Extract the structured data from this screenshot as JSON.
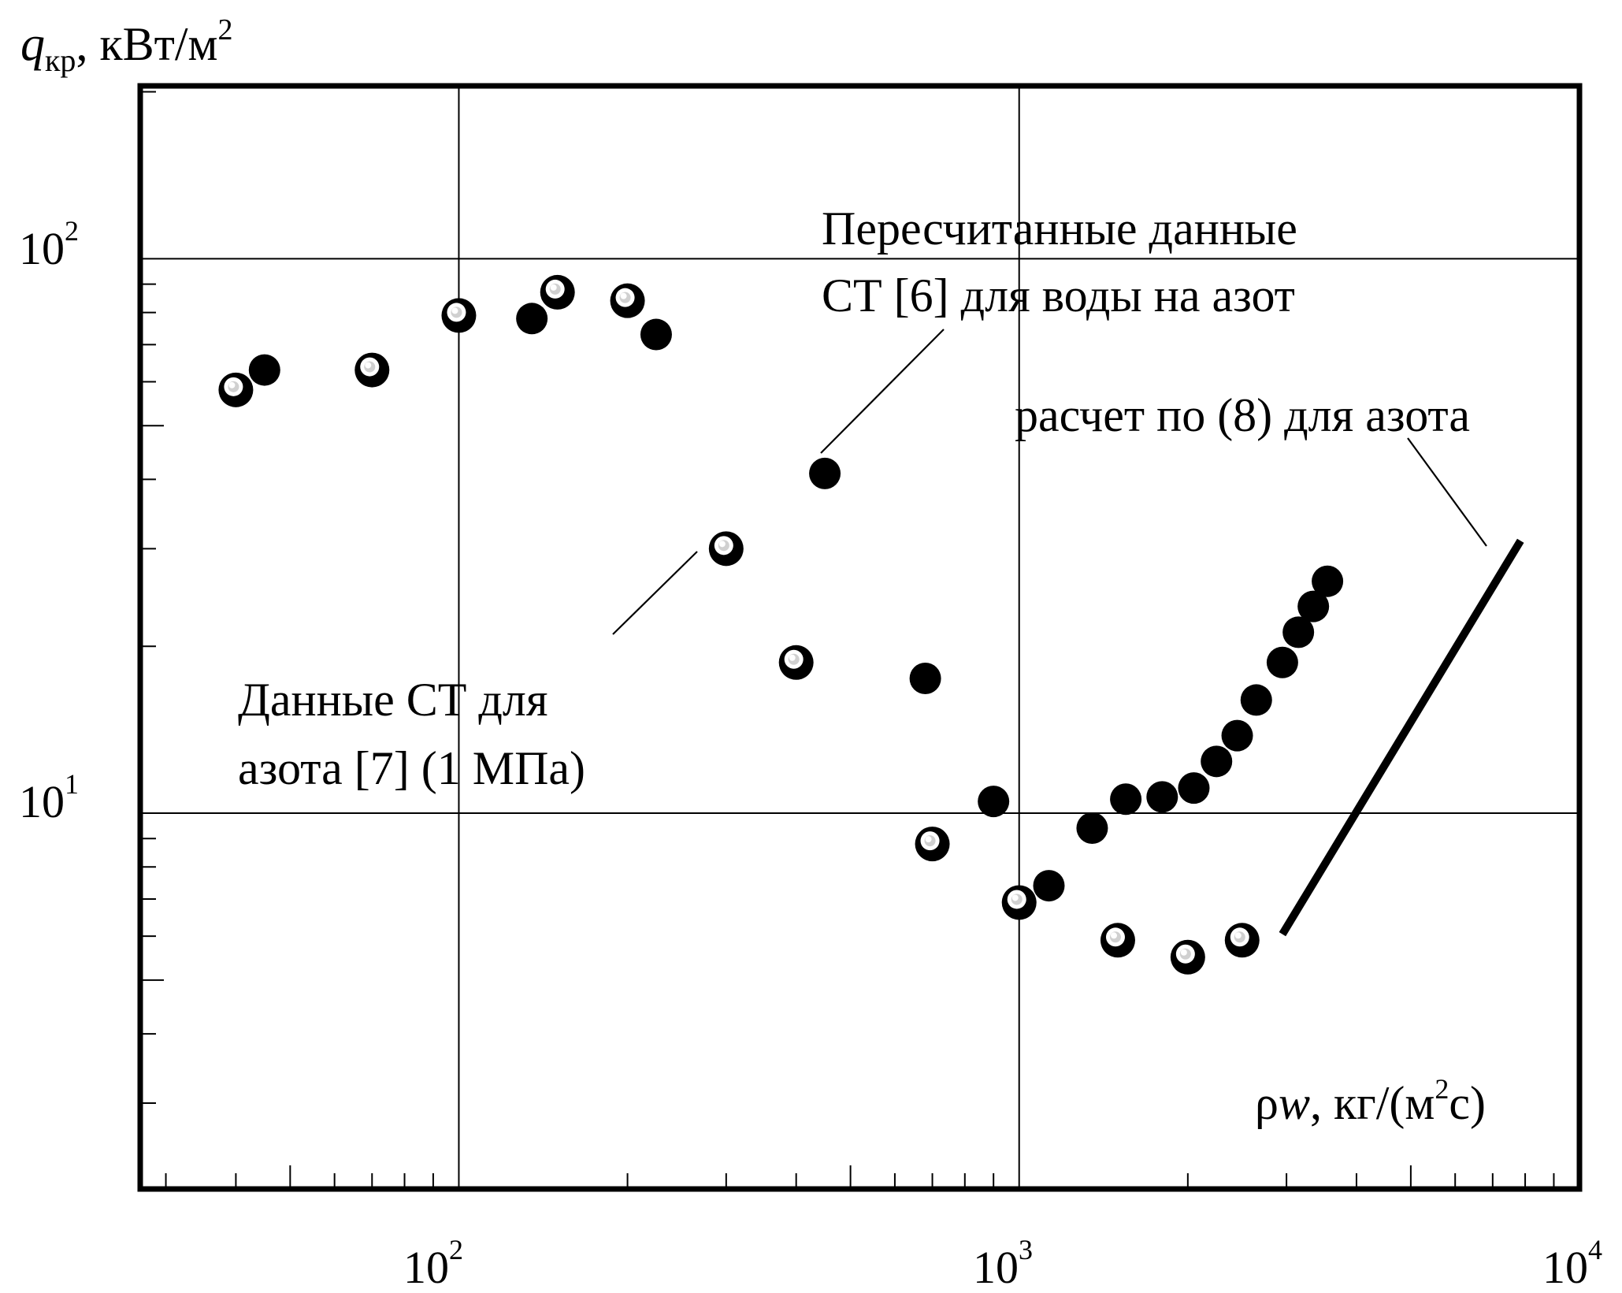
{
  "chart_data": {
    "type": "scatter",
    "ylabel": {
      "sym": "q",
      "sub": "кр",
      "unit": ", кВт/м",
      "sup": "2"
    },
    "xlabel": {
      "sym": "ρ",
      "ital": "w",
      "unit_a": ", кг/(м",
      "sup": "2",
      "unit_b": "с)"
    },
    "x_scale": "log",
    "y_scale": "log",
    "xlim": [
      27,
      10000
    ],
    "ylim": [
      2.1,
      205
    ],
    "x_ticks": [
      {
        "value": 100,
        "base": "10",
        "exp": "2"
      },
      {
        "value": 1000,
        "base": "10",
        "exp": "3"
      },
      {
        "value": 10000,
        "base": "10",
        "exp": "4"
      }
    ],
    "y_ticks": [
      {
        "value": 10,
        "base": "10",
        "exp": "1"
      },
      {
        "value": 100,
        "base": "10",
        "exp": "2"
      }
    ],
    "grid": true,
    "series": [
      {
        "marker": "solid-black",
        "points": [
          [
            45,
            63
          ],
          [
            135,
            78
          ],
          [
            225,
            73
          ],
          [
            450,
            41
          ],
          [
            680,
            17.5
          ],
          [
            900,
            10.5
          ],
          [
            1130,
            7.4
          ],
          [
            1350,
            9.4
          ],
          [
            1550,
            10.6
          ],
          [
            1800,
            10.7
          ],
          [
            2050,
            11.1
          ],
          [
            2250,
            12.4
          ],
          [
            2450,
            13.8
          ],
          [
            2650,
            16
          ],
          [
            2950,
            18.7
          ],
          [
            3150,
            21.2
          ],
          [
            3350,
            23.6
          ],
          [
            3550,
            26.2
          ]
        ]
      },
      {
        "marker": "ring-white-center",
        "points": [
          [
            40,
            58
          ],
          [
            70,
            63
          ],
          [
            100,
            79
          ],
          [
            150,
            87
          ],
          [
            200,
            84
          ],
          [
            300,
            30
          ],
          [
            400,
            18.7
          ],
          [
            700,
            8.8
          ],
          [
            1000,
            6.9
          ],
          [
            1500,
            5.9
          ],
          [
            2000,
            5.5
          ],
          [
            2500,
            5.9
          ]
        ]
      }
    ],
    "lines": [
      {
        "style": "thick",
        "points": [
          [
            2950,
            6.05
          ],
          [
            7850,
            31
          ]
        ]
      }
    ],
    "annotations": [
      {
        "lines": [
          "Пересчитанные данные",
          "СТ [6] для воды на азот"
        ]
      },
      {
        "lines": [
          "расчет по (8) для азота"
        ]
      },
      {
        "lines": [
          "Данные СТ для",
          "азота [7] (1 МПа)"
        ]
      }
    ]
  }
}
